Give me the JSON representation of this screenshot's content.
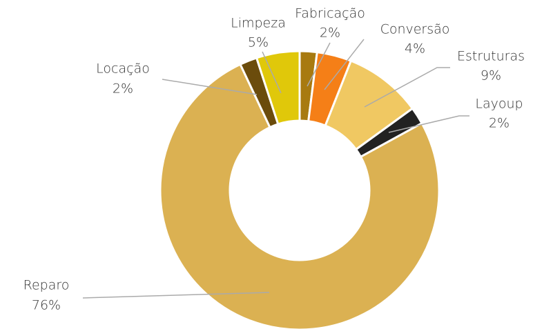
{
  "chart_data": {
    "type": "donut",
    "categories": [
      "Fabricação",
      "Conversão",
      "Estruturas",
      "Layoup",
      "Reparo",
      "Locação",
      "Limpeza"
    ],
    "values": [
      2,
      4,
      9,
      2,
      76,
      2,
      5
    ],
    "value_labels": [
      "2%",
      "4%",
      "9%",
      "2%",
      "76%",
      "2%",
      "5%"
    ],
    "colors": [
      "#a87a10",
      "#f57f17",
      "#f0c862",
      "#222222",
      "#dbb152",
      "#6b4c0c",
      "#e0c80a"
    ]
  }
}
